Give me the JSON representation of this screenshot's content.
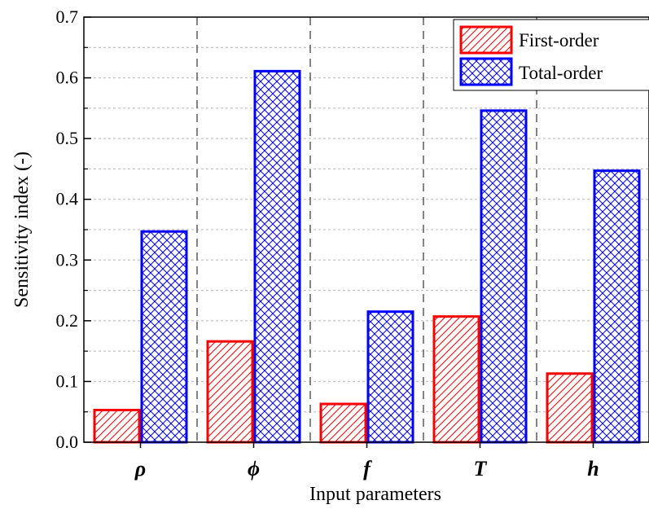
{
  "chart_data": {
    "type": "bar",
    "categories": [
      "ρ",
      "ϕ",
      "f",
      "T",
      "h"
    ],
    "series": [
      {
        "name": "First-order",
        "values": [
          0.053,
          0.166,
          0.063,
          0.207,
          0.113
        ],
        "color": "#ff0000",
        "pattern": "diagonal-hatch"
      },
      {
        "name": "Total-order",
        "values": [
          0.347,
          0.611,
          0.215,
          0.546,
          0.447
        ],
        "color": "#0000ff",
        "pattern": "crosshatch"
      }
    ],
    "title": "",
    "xlabel": "Input parameters",
    "ylabel": "Sensitivity index (-)",
    "ylim": [
      0,
      0.7
    ],
    "yticks": [
      "0.0",
      "0.1",
      "0.2",
      "0.3",
      "0.4",
      "0.5",
      "0.6",
      "0.7"
    ],
    "grid": "horizontal dotted minor lines, vertical dashed category separators",
    "legend_position": "top-right"
  }
}
